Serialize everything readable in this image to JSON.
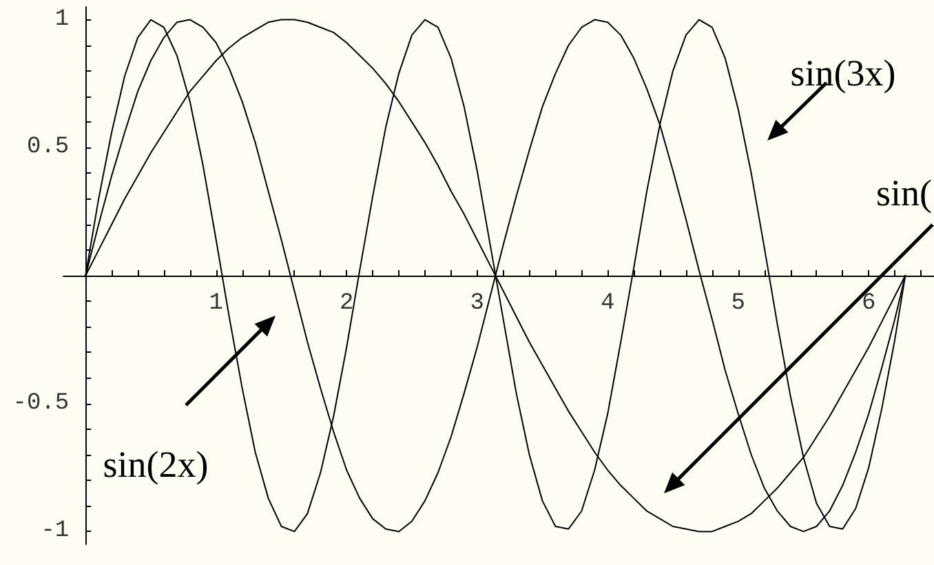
{
  "chart_data": {
    "type": "line",
    "marker": "none",
    "x": [
      0,
      0.1,
      0.2,
      0.3,
      0.4,
      0.5,
      0.6,
      0.7,
      0.8,
      0.9,
      1.0,
      1.1,
      1.2,
      1.3,
      1.4,
      1.5,
      1.6,
      1.7,
      1.8,
      1.9,
      2.0,
      2.1,
      2.2,
      2.3,
      2.4,
      2.5,
      2.6,
      2.7,
      2.8,
      2.9,
      3.0,
      3.1,
      3.2,
      3.3,
      3.4,
      3.5,
      3.6,
      3.7,
      3.8,
      3.9,
      4.0,
      4.1,
      4.2,
      4.3,
      4.4,
      4.5,
      4.6,
      4.7,
      4.8,
      4.9,
      5.0,
      5.1,
      5.2,
      5.3,
      5.4,
      5.5,
      5.6,
      5.7,
      5.8,
      5.9,
      6.0,
      6.1,
      6.2,
      6.28
    ],
    "series": [
      {
        "color": "#000000",
        "values": [
          0,
          0.1,
          0.2,
          0.3,
          0.39,
          0.48,
          0.56,
          0.64,
          0.72,
          0.78,
          0.84,
          0.89,
          0.93,
          0.96,
          0.99,
          1.0,
          1.0,
          0.99,
          0.97,
          0.95,
          0.91,
          0.86,
          0.81,
          0.75,
          0.68,
          0.6,
          0.52,
          0.43,
          0.33,
          0.24,
          0.14,
          0.04,
          -0.06,
          -0.16,
          -0.26,
          -0.35,
          -0.44,
          -0.53,
          -0.61,
          -0.69,
          -0.76,
          -0.82,
          -0.87,
          -0.92,
          -0.95,
          -0.98,
          -0.99,
          -1.0,
          -1.0,
          -0.98,
          -0.96,
          -0.93,
          -0.88,
          -0.83,
          -0.77,
          -0.71,
          -0.63,
          -0.55,
          -0.46,
          -0.37,
          -0.28,
          -0.18,
          -0.08,
          0
        ]
      },
      {
        "color": "#000000",
        "values": [
          0,
          0.2,
          0.39,
          0.56,
          0.72,
          0.84,
          0.93,
          0.99,
          1.0,
          0.97,
          0.91,
          0.81,
          0.68,
          0.52,
          0.33,
          0.14,
          -0.06,
          -0.26,
          -0.44,
          -0.61,
          -0.76,
          -0.87,
          -0.95,
          -0.99,
          -1.0,
          -0.96,
          -0.88,
          -0.77,
          -0.63,
          -0.46,
          -0.28,
          -0.08,
          0.12,
          0.31,
          0.49,
          0.66,
          0.79,
          0.9,
          0.97,
          1.0,
          0.99,
          0.94,
          0.85,
          0.73,
          0.59,
          0.41,
          0.22,
          0.02,
          -0.17,
          -0.37,
          -0.54,
          -0.7,
          -0.83,
          -0.92,
          -0.98,
          -1.0,
          -0.98,
          -0.92,
          -0.82,
          -0.69,
          -0.54,
          -0.36,
          -0.17,
          0
        ]
      },
      {
        "color": "#000000",
        "values": [
          0,
          0.3,
          0.56,
          0.78,
          0.93,
          1.0,
          0.97,
          0.86,
          0.68,
          0.43,
          0.14,
          -0.16,
          -0.44,
          -0.69,
          -0.87,
          -0.98,
          -1.0,
          -0.93,
          -0.77,
          -0.55,
          -0.28,
          0.02,
          0.31,
          0.58,
          0.79,
          0.94,
          1.0,
          0.97,
          0.85,
          0.66,
          0.41,
          0.12,
          -0.17,
          -0.46,
          -0.7,
          -0.88,
          -0.98,
          -0.99,
          -0.92,
          -0.76,
          -0.54,
          -0.26,
          0.03,
          0.33,
          0.59,
          0.8,
          0.94,
          1.0,
          0.97,
          0.85,
          0.65,
          0.4,
          0.11,
          -0.19,
          -0.47,
          -0.71,
          -0.89,
          -0.98,
          -0.99,
          -0.91,
          -0.75,
          -0.52,
          -0.25,
          0
        ]
      }
    ],
    "xlim": [
      -0.17,
      6.5
    ],
    "ylim": [
      -1.05,
      1.05
    ],
    "xticks": [
      {
        "value": 0.2,
        "label": null
      },
      {
        "value": 0.4,
        "label": null
      },
      {
        "value": 0.6,
        "label": null
      },
      {
        "value": 0.8,
        "label": null
      },
      1,
      {
        "value": 1.2,
        "label": null
      },
      {
        "value": 1.4,
        "label": null
      },
      {
        "value": 1.6,
        "label": null
      },
      {
        "value": 1.8,
        "label": null
      },
      2,
      {
        "value": 2.2,
        "label": null
      },
      {
        "value": 2.4,
        "label": null
      },
      {
        "value": 2.6,
        "label": null
      },
      {
        "value": 2.8,
        "label": null
      },
      3,
      {
        "value": 3.2,
        "label": null
      },
      {
        "value": 3.4,
        "label": null
      },
      {
        "value": 3.6,
        "label": null
      },
      {
        "value": 3.8,
        "label": null
      },
      4,
      {
        "value": 4.2,
        "label": null
      },
      {
        "value": 4.4,
        "label": null
      },
      {
        "value": 4.6,
        "label": null
      },
      {
        "value": 4.8,
        "label": null
      },
      5,
      {
        "value": 5.2,
        "label": null
      },
      {
        "value": 5.4,
        "label": null
      },
      {
        "value": 5.6,
        "label": null
      },
      {
        "value": 5.8,
        "label": null
      },
      6,
      {
        "value": 6.2,
        "label": null
      },
      {
        "value": 6.4,
        "label": null
      }
    ],
    "yticks": [
      -1,
      {
        "value": -0.9,
        "label": null
      },
      {
        "value": -0.8,
        "label": null
      },
      {
        "value": -0.7,
        "label": null
      },
      {
        "value": -0.6,
        "label": null
      },
      -0.5,
      {
        "value": -0.4,
        "label": null
      },
      {
        "value": -0.3,
        "label": null
      },
      {
        "value": -0.2,
        "label": null
      },
      {
        "value": -0.1,
        "label": null
      },
      {
        "value": 0.1,
        "label": null
      },
      {
        "value": 0.2,
        "label": null
      },
      {
        "value": 0.3,
        "label": null
      },
      {
        "value": 0.4,
        "label": null
      },
      0.5,
      {
        "value": 0.6,
        "label": null
      },
      {
        "value": 0.7,
        "label": null
      },
      {
        "value": 0.8,
        "label": null
      },
      {
        "value": 0.9,
        "label": null
      },
      1
    ],
    "annotations": [
      "sin(3x)",
      "sin(",
      "sin(2x)"
    ]
  }
}
